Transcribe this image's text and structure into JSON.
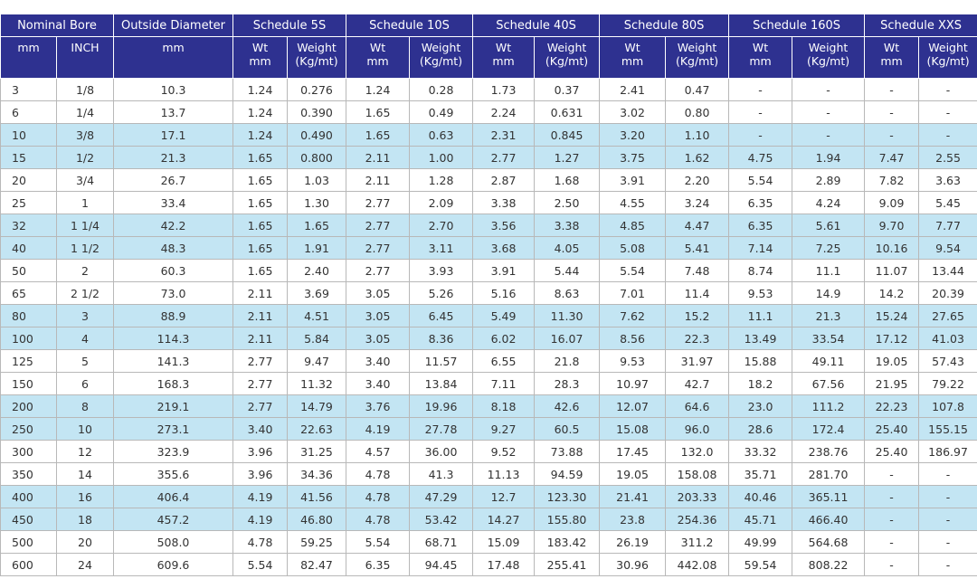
{
  "table": {
    "header": [
      "Nominal Bore",
      "Outside Diameter",
      "Schedule 5S",
      "Schedule 10S",
      "Schedule 40S",
      "Schedule 80S",
      "Schedule 160S",
      "Schedule XXS"
    ],
    "subheader": [
      "mm",
      "INCH",
      "mm",
      "Wt\nmm",
      "Weight\n(Kg/mt)",
      "Wt\nmm",
      "Weight\n(Kg/mt)",
      "Wt\nmm",
      "Weight\n(Kg/mt)",
      "Wt\nmm",
      "Weight\n(Kg/mt)",
      "Wt\nmm",
      "Weight\n(Kg/mt)",
      "Wt\nmm",
      "Weight\n(Kg/mt)"
    ],
    "rows": [
      [
        "3",
        "1/8",
        "10.3",
        "1.24",
        "0.276",
        "1.24",
        "0.28",
        "1.73",
        "0.37",
        "2.41",
        "0.47",
        "-",
        "-",
        "-",
        "-"
      ],
      [
        "6",
        "1/4",
        "13.7",
        "1.24",
        "0.390",
        "1.65",
        "0.49",
        "2.24",
        "0.631",
        "3.02",
        "0.80",
        "-",
        "-",
        "-",
        "-"
      ],
      [
        "10",
        "3/8",
        "17.1",
        "1.24",
        "0.490",
        "1.65",
        "0.63",
        "2.31",
        "0.845",
        "3.20",
        "1.10",
        "-",
        "-",
        "-",
        "-"
      ],
      [
        "15",
        "1/2",
        "21.3",
        "1.65",
        "0.800",
        "2.11",
        "1.00",
        "2.77",
        "1.27",
        "3.75",
        "1.62",
        "4.75",
        "1.94",
        "7.47",
        "2.55"
      ],
      [
        "20",
        "3/4",
        "26.7",
        "1.65",
        "1.03",
        "2.11",
        "1.28",
        "2.87",
        "1.68",
        "3.91",
        "2.20",
        "5.54",
        "2.89",
        "7.82",
        "3.63"
      ],
      [
        "25",
        "1",
        "33.4",
        "1.65",
        "1.30",
        "2.77",
        "2.09",
        "3.38",
        "2.50",
        "4.55",
        "3.24",
        "6.35",
        "4.24",
        "9.09",
        "5.45"
      ],
      [
        "32",
        "1 1/4",
        "42.2",
        "1.65",
        "1.65",
        "2.77",
        "2.70",
        "3.56",
        "3.38",
        "4.85",
        "4.47",
        "6.35",
        "5.61",
        "9.70",
        "7.77"
      ],
      [
        "40",
        "1 1/2",
        "48.3",
        "1.65",
        "1.91",
        "2.77",
        "3.11",
        "3.68",
        "4.05",
        "5.08",
        "5.41",
        "7.14",
        "7.25",
        "10.16",
        "9.54"
      ],
      [
        "50",
        "2",
        "60.3",
        "1.65",
        "2.40",
        "2.77",
        "3.93",
        "3.91",
        "5.44",
        "5.54",
        "7.48",
        "8.74",
        "11.1",
        "11.07",
        "13.44"
      ],
      [
        "65",
        "2 1/2",
        "73.0",
        "2.11",
        "3.69",
        "3.05",
        "5.26",
        "5.16",
        "8.63",
        "7.01",
        "11.4",
        "9.53",
        "14.9",
        "14.2",
        "20.39"
      ],
      [
        "80",
        "3",
        "88.9",
        "2.11",
        "4.51",
        "3.05",
        "6.45",
        "5.49",
        "11.30",
        "7.62",
        "15.2",
        "11.1",
        "21.3",
        "15.24",
        "27.65"
      ],
      [
        "100",
        "4",
        "114.3",
        "2.11",
        "5.84",
        "3.05",
        "8.36",
        "6.02",
        "16.07",
        "8.56",
        "22.3",
        "13.49",
        "33.54",
        "17.12",
        "41.03"
      ],
      [
        "125",
        "5",
        "141.3",
        "2.77",
        "9.47",
        "3.40",
        "11.57",
        "6.55",
        "21.8",
        "9.53",
        "31.97",
        "15.88",
        "49.11",
        "19.05",
        "57.43"
      ],
      [
        "150",
        "6",
        "168.3",
        "2.77",
        "11.32",
        "3.40",
        "13.84",
        "7.11",
        "28.3",
        "10.97",
        "42.7",
        "18.2",
        "67.56",
        "21.95",
        "79.22"
      ],
      [
        "200",
        "8",
        "219.1",
        "2.77",
        "14.79",
        "3.76",
        "19.96",
        "8.18",
        "42.6",
        "12.07",
        "64.6",
        "23.0",
        "111.2",
        "22.23",
        "107.8"
      ],
      [
        "250",
        "10",
        "273.1",
        "3.40",
        "22.63",
        "4.19",
        "27.78",
        "9.27",
        "60.5",
        "15.08",
        "96.0",
        "28.6",
        "172.4",
        "25.40",
        "155.15"
      ],
      [
        "300",
        "12",
        "323.9",
        "3.96",
        "31.25",
        "4.57",
        "36.00",
        "9.52",
        "73.88",
        "17.45",
        "132.0",
        "33.32",
        "238.76",
        "25.40",
        "186.97"
      ],
      [
        "350",
        "14",
        "355.6",
        "3.96",
        "34.36",
        "4.78",
        "41.3",
        "11.13",
        "94.59",
        "19.05",
        "158.08",
        "35.71",
        "281.70",
        "-",
        "-"
      ],
      [
        "400",
        "16",
        "406.4",
        "4.19",
        "41.56",
        "4.78",
        "47.29",
        "12.7",
        "123.30",
        "21.41",
        "203.33",
        "40.46",
        "365.11",
        "-",
        "-"
      ],
      [
        "450",
        "18",
        "457.2",
        "4.19",
        "46.80",
        "4.78",
        "53.42",
        "14.27",
        "155.80",
        "23.8",
        "254.36",
        "45.71",
        "466.40",
        "-",
        "-"
      ],
      [
        "500",
        "20",
        "508.0",
        "4.78",
        "59.25",
        "5.54",
        "68.71",
        "15.09",
        "183.42",
        "26.19",
        "311.2",
        "49.99",
        "564.68",
        "-",
        "-"
      ],
      [
        "600",
        "24",
        "609.6",
        "5.54",
        "82.47",
        "6.35",
        "94.45",
        "17.48",
        "255.41",
        "30.96",
        "442.08",
        "59.54",
        "808.22",
        "-",
        "-"
      ]
    ]
  }
}
